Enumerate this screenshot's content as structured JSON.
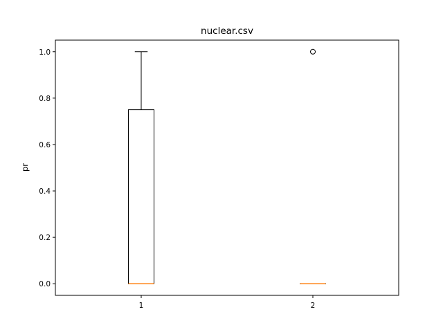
{
  "chart_data": {
    "type": "box",
    "title": "nuclear.csv",
    "xlabel": "",
    "ylabel": "pr",
    "categories": [
      "1",
      "2"
    ],
    "ylim": [
      -0.05,
      1.05
    ],
    "yticks": [
      "0.0",
      "0.2",
      "0.4",
      "0.6",
      "0.8",
      "1.0"
    ],
    "boxes": [
      {
        "name": "1",
        "whisker_low": 0.0,
        "q1": 0.0,
        "median": 0.0,
        "q3": 0.75,
        "whisker_high": 1.0,
        "outliers": []
      },
      {
        "name": "2",
        "whisker_low": 0.0,
        "q1": 0.0,
        "median": 0.0,
        "q3": 0.0,
        "whisker_high": 0.0,
        "outliers": [
          1.0
        ]
      }
    ],
    "grid": false,
    "colors": {
      "box": "#000000",
      "median": "#ff7f0e",
      "background": "#ffffff"
    }
  }
}
